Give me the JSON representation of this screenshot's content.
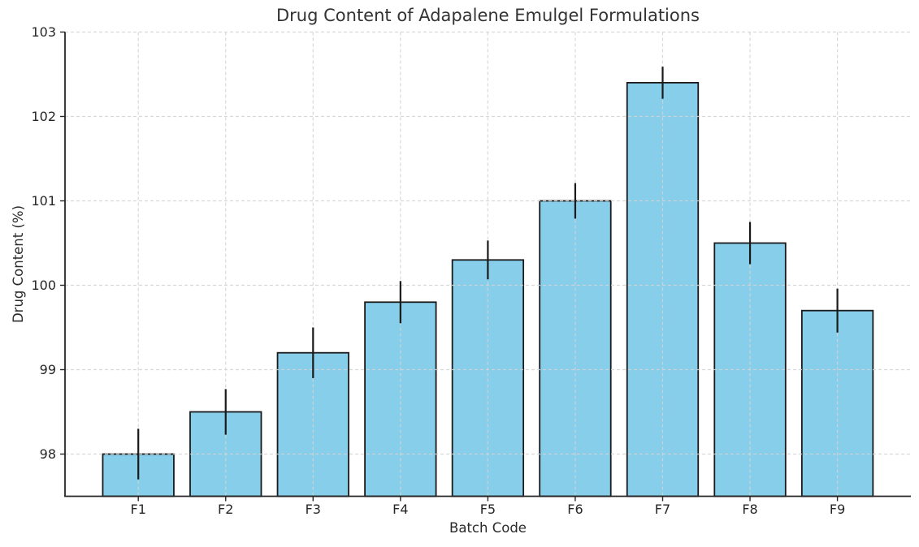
{
  "chart_data": {
    "type": "bar",
    "title": "Drug Content of Adapalene Emulgel Formulations",
    "xlabel": "Batch Code",
    "ylabel": "Drug Content (%)",
    "categories": [
      "F1",
      "F2",
      "F3",
      "F4",
      "F5",
      "F6",
      "F7",
      "F8",
      "F9"
    ],
    "values": [
      98.0,
      98.5,
      99.2,
      99.8,
      100.3,
      101.0,
      102.4,
      100.5,
      99.7
    ],
    "errors": [
      0.3,
      0.27,
      0.3,
      0.25,
      0.23,
      0.21,
      0.19,
      0.25,
      0.26
    ],
    "series_name": "Drug Content (%)",
    "ylim": [
      97.5,
      103.0
    ],
    "yticks": [
      98,
      99,
      100,
      101,
      102,
      103
    ],
    "legend": "none",
    "grid": "dashed gridlines on both axes, drawn above bars",
    "colors": {
      "bar_fill": "#87CEEB",
      "bar_edge": "#1a1a1a",
      "error_bar": "#1a1a1a",
      "grid_line": "#d4d4d4",
      "spine": "#262626",
      "text": "#333333",
      "background": "#ffffff"
    }
  }
}
